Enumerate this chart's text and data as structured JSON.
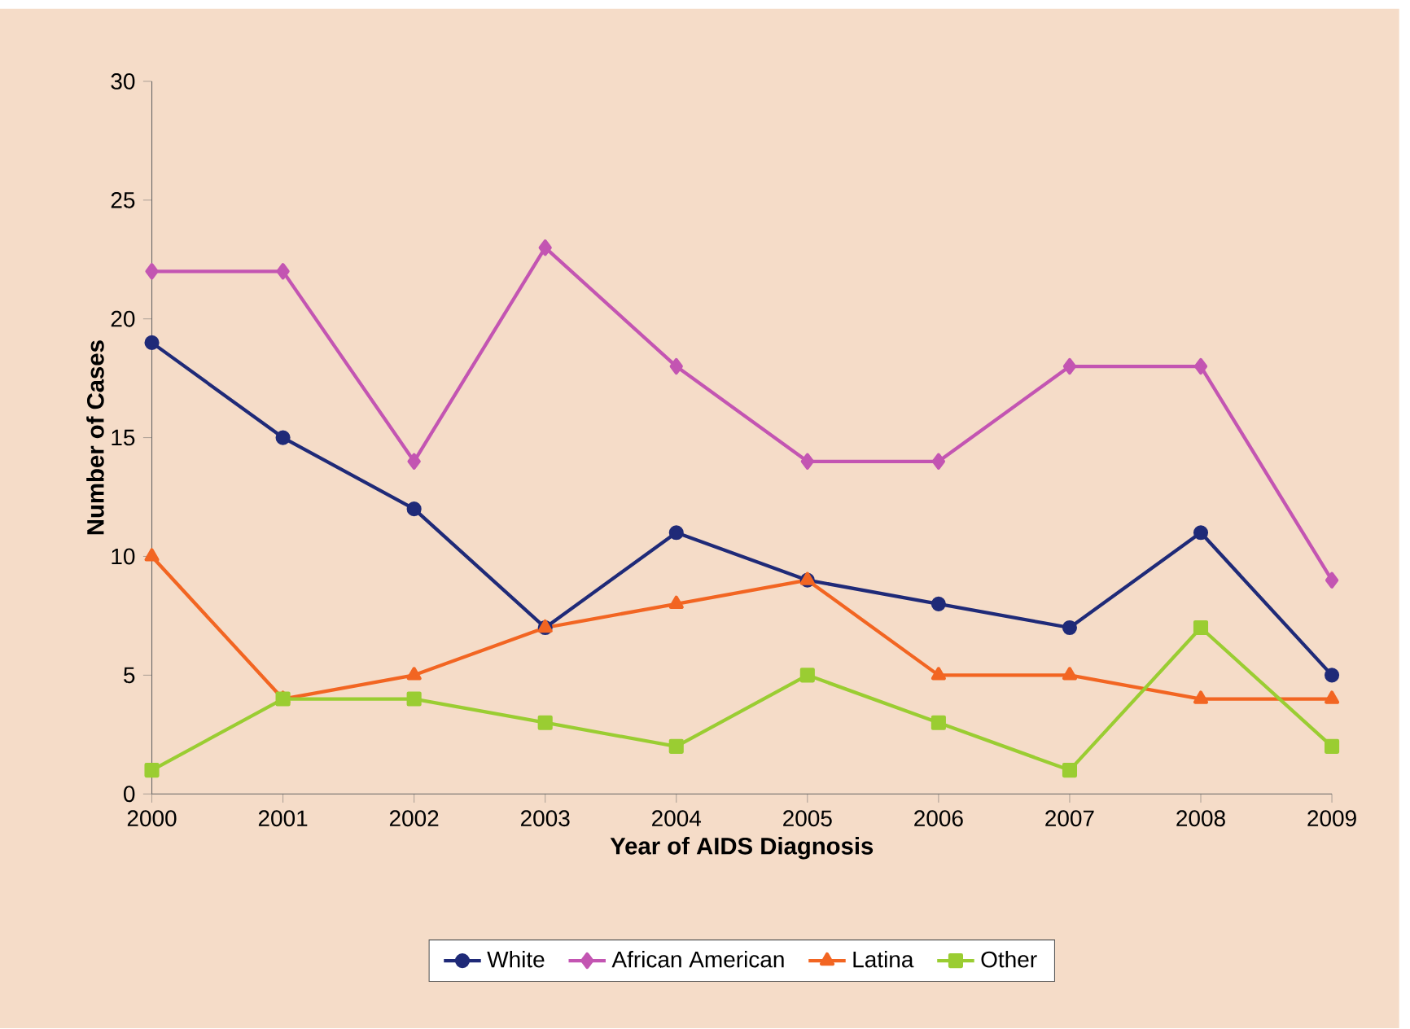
{
  "chart_data": {
    "type": "line",
    "xlabel": "Year of AIDS Diagnosis",
    "ylabel": "Number of Cases",
    "x": [
      2000,
      2001,
      2002,
      2003,
      2004,
      2005,
      2006,
      2007,
      2008,
      2009
    ],
    "xlim": [
      2000,
      2009
    ],
    "xticks": [
      2000,
      2001,
      2002,
      2003,
      2004,
      2005,
      2006,
      2007,
      2008,
      2009
    ],
    "ylim": [
      0,
      30
    ],
    "yticks": [
      0,
      5,
      10,
      15,
      20,
      25,
      30
    ],
    "grid": false,
    "legend": "bottom",
    "series": [
      {
        "name": "White",
        "color": "#1f2a78",
        "marker": "circle",
        "values": [
          19,
          15,
          12,
          7,
          11,
          9,
          8,
          7,
          11,
          5
        ]
      },
      {
        "name": "African American",
        "color": "#c355b2",
        "marker": "diamond",
        "values": [
          22,
          22,
          14,
          23,
          18,
          14,
          14,
          18,
          18,
          9
        ]
      },
      {
        "name": "Latina",
        "color": "#f26522",
        "marker": "triangle",
        "values": [
          10,
          4,
          5,
          7,
          8,
          9,
          5,
          5,
          4,
          4
        ]
      },
      {
        "name": "Other",
        "color": "#9acd32",
        "marker": "square",
        "values": [
          1,
          4,
          4,
          3,
          2,
          5,
          3,
          1,
          7,
          2
        ]
      }
    ]
  }
}
